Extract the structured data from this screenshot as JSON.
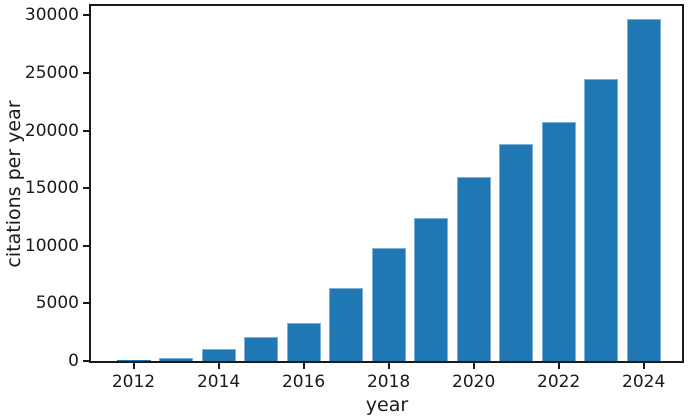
{
  "chart_data": {
    "type": "bar",
    "title": "",
    "xlabel": "year",
    "ylabel": "citations per year",
    "categories": [
      2012,
      2013,
      2014,
      2015,
      2016,
      2017,
      2018,
      2019,
      2020,
      2021,
      2022,
      2023,
      2024
    ],
    "values": [
      50,
      250,
      1050,
      2100,
      3300,
      6350,
      9800,
      12400,
      16000,
      18800,
      20700,
      24500,
      29650
    ],
    "xticks": [
      2012,
      2014,
      2016,
      2018,
      2020,
      2022,
      2024
    ],
    "yticks": [
      0,
      5000,
      10000,
      15000,
      20000,
      25000,
      30000
    ],
    "xlim": [
      2011.0,
      2024.9
    ],
    "ylim": [
      0,
      30800
    ],
    "bar_width_years": 0.8,
    "bar_color": "#1f77b4",
    "bar_edge_color": "#7eb0d8",
    "axis_color": "#1a1a1a",
    "text_color": "#1a1a1a",
    "grid": false,
    "legend_position": "none"
  }
}
